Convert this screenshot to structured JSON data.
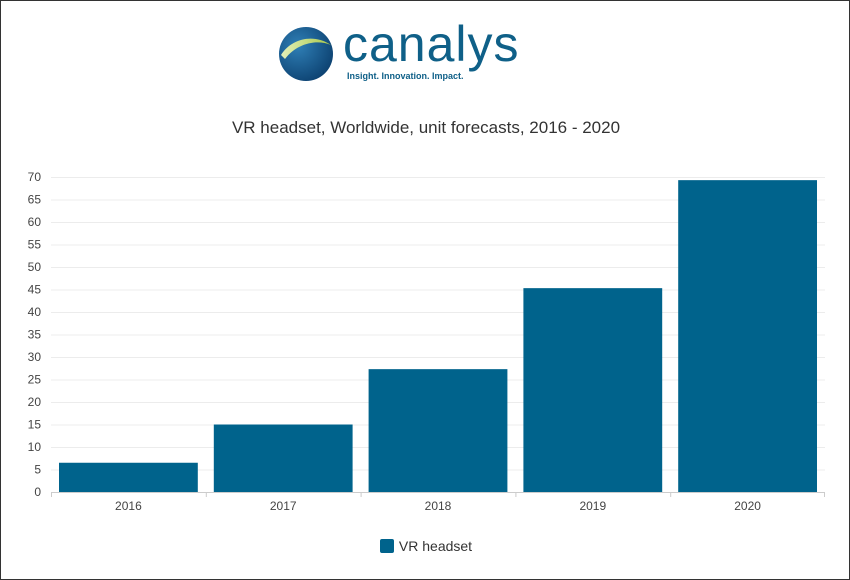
{
  "logo": {
    "wordmark": "canalys",
    "tagline": "Insight. Innovation. Impact.",
    "globe_icon": "globe-swoosh-icon",
    "colors": {
      "brand_blue": "#0f6088",
      "globe_dark": "#0b3f6e",
      "swoosh_green": "#a9c84a"
    }
  },
  "chart_data": {
    "type": "bar",
    "title": "VR headset, Worldwide, unit forecasts, 2016 - 2020",
    "categories": [
      "2016",
      "2017",
      "2018",
      "2019",
      "2020"
    ],
    "series": [
      {
        "name": "VR headset",
        "values": [
          6.5,
          15,
          27.3,
          45.3,
          69.3
        ],
        "color": "#00638c"
      }
    ],
    "ylim": [
      0,
      70
    ],
    "yticks": [
      0,
      5,
      10,
      15,
      20,
      25,
      30,
      35,
      40,
      45,
      50,
      55,
      60,
      65,
      70
    ],
    "xlabel": "",
    "ylabel": "",
    "grid": true,
    "legend_position": "bottom"
  }
}
